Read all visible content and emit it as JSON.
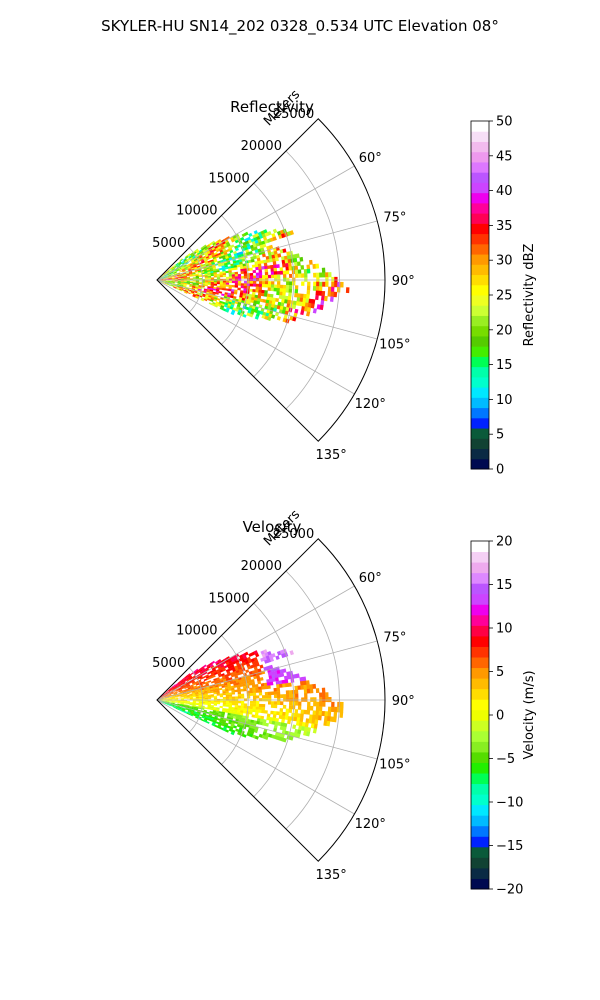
{
  "figure_title": "SKYLER-HU  SN14_202  0328_0.534 UTC Elevation 08°",
  "chart_data": [
    {
      "type": "polar-sector",
      "title": "Reflectivity",
      "range_label": "Meters",
      "r_ticks": [
        5000,
        10000,
        15000,
        20000,
        25000
      ],
      "r_tick_labels": [
        "5000",
        "10000",
        "15000",
        "20000",
        "25000"
      ],
      "rmax": 25000,
      "theta_range_deg": [
        45,
        135
      ],
      "theta_ticks": [
        60,
        75,
        90,
        105,
        120,
        135
      ],
      "theta_tick_labels": [
        "60°",
        "75°",
        "90°",
        "105°",
        "120°",
        "135°"
      ],
      "grid": true,
      "colorbar": {
        "label": "Reflectivity dBZ",
        "range": [
          0,
          50
        ],
        "ticks": [
          0,
          5,
          10,
          15,
          20,
          25,
          30,
          35,
          40,
          45,
          50
        ],
        "tick_labels": [
          "0",
          "5",
          "10",
          "15",
          "20",
          "25",
          "30",
          "35",
          "40",
          "45",
          "50"
        ],
        "colors": [
          "#000a50",
          "#0a2a44",
          "#114233",
          "#0a5a3a",
          "#0022ff",
          "#0077ff",
          "#00bbff",
          "#00e8ff",
          "#00ffcc",
          "#00ffaa",
          "#00ff55",
          "#44ee00",
          "#55cc00",
          "#77dd00",
          "#99ee22",
          "#ccff33",
          "#eeff22",
          "#ffff00",
          "#ffdd00",
          "#ffbb00",
          "#ff9900",
          "#ff6600",
          "#ff3300",
          "#ff0000",
          "#ff0055",
          "#ff0099",
          "#ee00ee",
          "#cc44ff",
          "#bb55ff",
          "#dd77ff",
          "#ee99ee",
          "#f2bbee",
          "#f7dff7",
          "#ffffff"
        ]
      }
    },
    {
      "type": "polar-sector",
      "title": "Velocity",
      "range_label": "Meters",
      "r_ticks": [
        5000,
        10000,
        15000,
        20000,
        25000
      ],
      "r_tick_labels": [
        "5000",
        "10000",
        "15000",
        "20000",
        "25000"
      ],
      "rmax": 25000,
      "theta_range_deg": [
        45,
        135
      ],
      "theta_ticks": [
        60,
        75,
        90,
        105,
        120,
        135
      ],
      "theta_tick_labels": [
        "60°",
        "75°",
        "90°",
        "105°",
        "120°",
        "135°"
      ],
      "grid": true,
      "colorbar": {
        "label": "Velocity (m/s)",
        "range": [
          -20,
          20
        ],
        "ticks": [
          -20,
          -15,
          -10,
          -5,
          0,
          5,
          10,
          15,
          20
        ],
        "tick_labels": [
          "−20",
          "−15",
          "−10",
          "−5",
          "0",
          "5",
          "10",
          "15",
          "20"
        ],
        "colors": [
          "#000a50",
          "#0a2a44",
          "#114233",
          "#0a5a3a",
          "#0022ff",
          "#0077ff",
          "#00bbff",
          "#00e8ff",
          "#00ffcc",
          "#00ffaa",
          "#00ff55",
          "#22ee00",
          "#55dd00",
          "#88ee22",
          "#aaff33",
          "#ccff22",
          "#eeff00",
          "#ffff00",
          "#ffdd00",
          "#ffbb00",
          "#ff9900",
          "#ff6600",
          "#ff3300",
          "#ff0000",
          "#ff0044",
          "#ff0099",
          "#ee00ee",
          "#cc44ff",
          "#bb55ff",
          "#dd88ff",
          "#eeaaee",
          "#f5d0f5",
          "#ffffff"
        ]
      }
    }
  ]
}
